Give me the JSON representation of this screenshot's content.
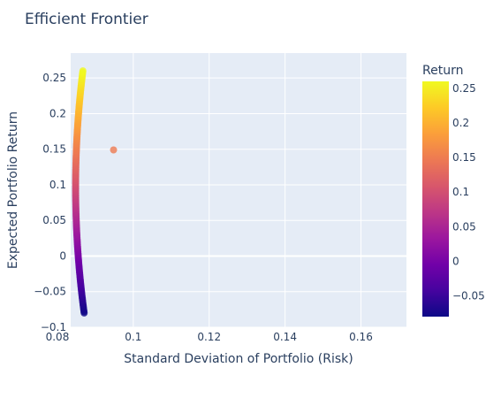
{
  "chart_data": {
    "type": "scatter",
    "title": "Efficient Frontier",
    "xlabel": "Standard Deviation of Portfolio (Risk)",
    "ylabel": "Expected Portfolio Return",
    "xlim": [
      0.0835,
      0.172
    ],
    "ylim": [
      -0.1,
      0.285
    ],
    "x_ticks": [
      0.08,
      0.1,
      0.12,
      0.14,
      0.16
    ],
    "x_tick_labels": [
      "0.08",
      "0.1",
      "0.12",
      "0.14",
      "0.16"
    ],
    "y_ticks": [
      -0.1,
      -0.05,
      0,
      0.05,
      0.1,
      0.15,
      0.2,
      0.25
    ],
    "y_tick_labels": [
      "−0.1",
      "−0.05",
      "0",
      "0.05",
      "0.1",
      "0.15",
      "0.2",
      "0.25"
    ],
    "grid": true,
    "colorbar": {
      "title": "Return",
      "range": [
        -0.08,
        0.26
      ],
      "ticks": [
        -0.05,
        0,
        0.05,
        0.1,
        0.15,
        0.2,
        0.25
      ],
      "tick_labels": [
        "−0.05",
        "0",
        "0.05",
        "0.1",
        "0.15",
        "0.2",
        "0.25"
      ],
      "colorscale": [
        "#0d0887",
        "#46039f",
        "#7201a8",
        "#9c179e",
        "#bd3786",
        "#d8576b",
        "#ed7953",
        "#fb9f3a",
        "#fdca26",
        "#f0f921"
      ]
    },
    "frontier_model": {
      "min_risk": 0.0848,
      "return_at_min_risk": 0.097,
      "curvature": 0.01235
    },
    "frontier_return_range": [
      -0.08,
      0.26
    ],
    "frontier_step": 0.002,
    "points": [
      {
        "x": 0.0948,
        "y": 0.149
      }
    ]
  }
}
